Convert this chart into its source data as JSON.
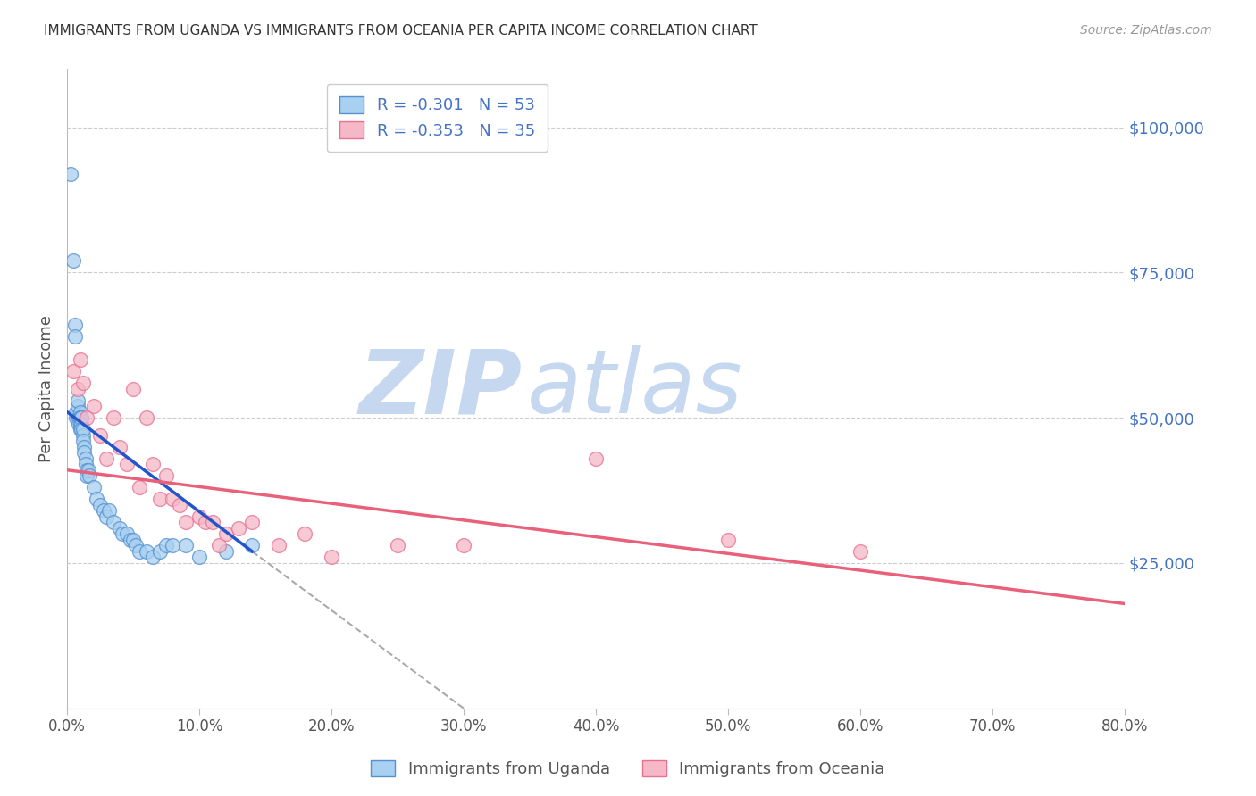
{
  "title": "IMMIGRANTS FROM UGANDA VS IMMIGRANTS FROM OCEANIA PER CAPITA INCOME CORRELATION CHART",
  "source": "Source: ZipAtlas.com",
  "ylabel": "Per Capita Income",
  "xlabel_ticks": [
    "0.0%",
    "10.0%",
    "20.0%",
    "30.0%",
    "40.0%",
    "50.0%",
    "60.0%",
    "70.0%",
    "80.0%"
  ],
  "xlabel_vals": [
    0,
    10,
    20,
    30,
    40,
    50,
    60,
    70,
    80
  ],
  "ytick_vals": [
    0,
    25000,
    50000,
    75000,
    100000
  ],
  "ytick_labels": [
    "",
    "$25,000",
    "$50,000",
    "$75,000",
    "$100,000"
  ],
  "xlim": [
    0,
    80
  ],
  "ylim": [
    0,
    110000
  ],
  "uganda_R": -0.301,
  "uganda_N": 53,
  "oceania_R": -0.353,
  "oceania_N": 35,
  "uganda_color": "#A8D0F0",
  "oceania_color": "#F5B8C8",
  "uganda_edge_color": "#5590D0",
  "oceania_edge_color": "#E87090",
  "uganda_line_color": "#2255CC",
  "oceania_line_color": "#E8607A",
  "grid_color": "#CCCCCC",
  "background_color": "#FFFFFF",
  "watermark_zip_color": "#C5D8F0",
  "watermark_atlas_color": "#C5D8F0",
  "uganda_x": [
    0.3,
    0.5,
    0.6,
    0.6,
    0.7,
    0.7,
    0.8,
    0.8,
    0.9,
    0.9,
    1.0,
    1.0,
    1.0,
    1.0,
    1.0,
    1.0,
    1.1,
    1.1,
    1.1,
    1.2,
    1.2,
    1.2,
    1.3,
    1.3,
    1.4,
    1.4,
    1.5,
    1.5,
    1.6,
    1.7,
    2.0,
    2.2,
    2.5,
    2.8,
    3.0,
    3.2,
    3.5,
    4.0,
    4.2,
    4.5,
    4.8,
    5.0,
    5.2,
    5.5,
    6.0,
    6.5,
    7.0,
    7.5,
    8.0,
    9.0,
    10.0,
    12.0,
    14.0
  ],
  "uganda_y": [
    92000,
    77000,
    66000,
    64000,
    50000,
    51000,
    52000,
    53000,
    50000,
    49000,
    50000,
    51000,
    50000,
    49000,
    50000,
    48000,
    49000,
    50000,
    48000,
    47000,
    48000,
    46000,
    45000,
    44000,
    43000,
    42000,
    41000,
    40000,
    41000,
    40000,
    38000,
    36000,
    35000,
    34000,
    33000,
    34000,
    32000,
    31000,
    30000,
    30000,
    29000,
    29000,
    28000,
    27000,
    27000,
    26000,
    27000,
    28000,
    28000,
    28000,
    26000,
    27000,
    28000
  ],
  "oceania_x": [
    0.5,
    0.8,
    1.0,
    1.2,
    1.5,
    2.0,
    2.5,
    3.0,
    3.5,
    4.0,
    4.5,
    5.0,
    5.5,
    6.0,
    6.5,
    7.0,
    7.5,
    8.0,
    8.5,
    9.0,
    10.0,
    10.5,
    11.0,
    11.5,
    12.0,
    13.0,
    14.0,
    16.0,
    18.0,
    20.0,
    25.0,
    30.0,
    40.0,
    50.0,
    60.0
  ],
  "oceania_y": [
    58000,
    55000,
    60000,
    56000,
    50000,
    52000,
    47000,
    43000,
    50000,
    45000,
    42000,
    55000,
    38000,
    50000,
    42000,
    36000,
    40000,
    36000,
    35000,
    32000,
    33000,
    32000,
    32000,
    28000,
    30000,
    31000,
    32000,
    28000,
    30000,
    26000,
    28000,
    28000,
    43000,
    29000,
    27000
  ],
  "uganda_reg_x0": 0.0,
  "uganda_reg_y0": 51000,
  "uganda_reg_x1": 14.0,
  "uganda_reg_y1": 27000,
  "uganda_dash_x0": 14.0,
  "uganda_dash_y0": 27000,
  "uganda_dash_x1": 30.0,
  "uganda_dash_y1": 0,
  "oceania_reg_x0": 0.0,
  "oceania_reg_y0": 41000,
  "oceania_reg_x1": 80.0,
  "oceania_reg_y1": 18000
}
